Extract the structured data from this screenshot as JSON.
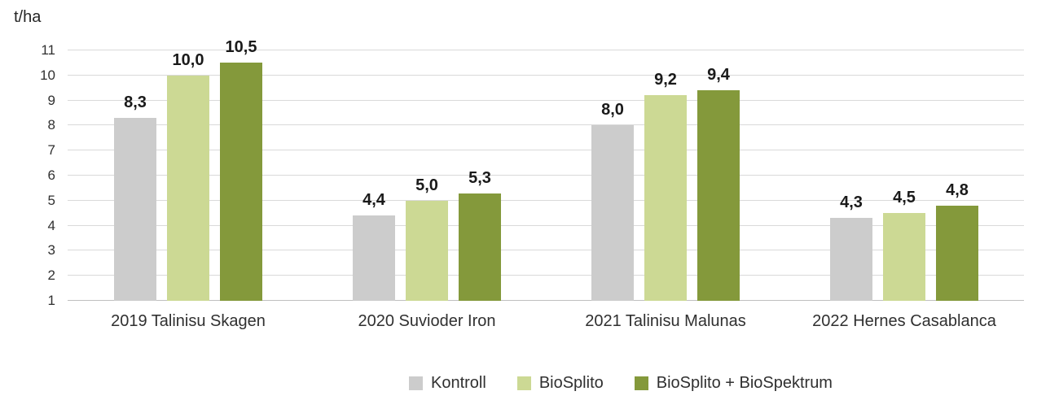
{
  "chart_data": {
    "type": "bar",
    "title": "",
    "ylabel": "t/ha",
    "categories": [
      "2019 Talinisu Skagen",
      "2020 Suvioder Iron",
      "2021 Talinisu Malunas",
      "2022 Hernes Casablanca"
    ],
    "series": [
      {
        "name": "Kontroll",
        "color": "#CCCCCC",
        "values": [
          8.3,
          4.4,
          8.0,
          4.3
        ],
        "value_labels": [
          "8,3",
          "4,4",
          "8,0",
          "4,3"
        ]
      },
      {
        "name": "BioSplito",
        "color": "#CCD994",
        "values": [
          10.0,
          5.0,
          9.2,
          4.5
        ],
        "value_labels": [
          "10,0",
          "5,0",
          "9,2",
          "4,5"
        ]
      },
      {
        "name": "BioSplito + BioSpektrum",
        "color": "#84993B",
        "values": [
          10.5,
          5.3,
          9.4,
          4.8
        ],
        "value_labels": [
          "10,5",
          "5,3",
          "9,4",
          "4,8"
        ]
      }
    ],
    "y_ticks": [
      "1",
      "2",
      "3",
      "4",
      "5",
      "6",
      "7",
      "8",
      "9",
      "10",
      "11"
    ],
    "ylim": [
      1,
      11
    ],
    "grid": true,
    "legend_position": "bottom",
    "colors": {
      "gridline": "#D9D9D9",
      "axis_line": "#BFBFBF",
      "text": "#303030",
      "value_label": "#1A1A1A"
    }
  }
}
